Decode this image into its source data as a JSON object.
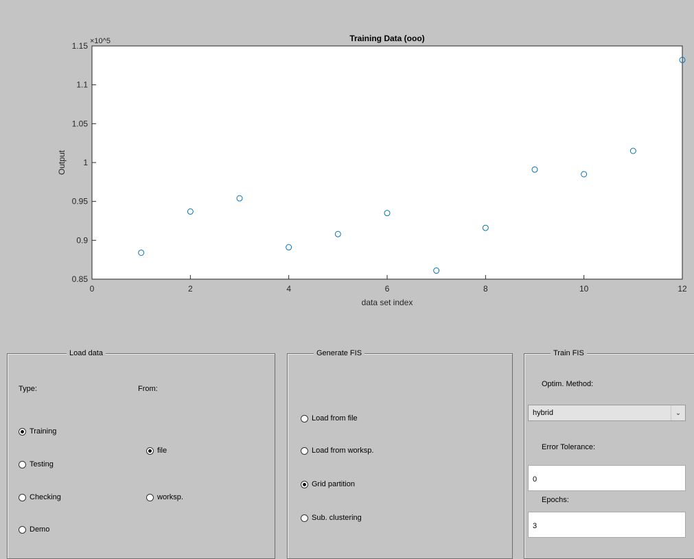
{
  "chart_data": {
    "type": "scatter",
    "title": "Training Data (ooo)",
    "xlabel": "data set index",
    "ylabel": "Output",
    "y_multiplier": "×10^5",
    "xlim": [
      0,
      12
    ],
    "ylim": [
      0.85,
      1.15
    ],
    "xticks": [
      "0",
      "2",
      "4",
      "6",
      "8",
      "10",
      "12"
    ],
    "yticks": [
      "0.85",
      "0.9",
      "0.95",
      "1",
      "1.05",
      "1.1",
      "1.15"
    ],
    "x": [
      1,
      2,
      3,
      4,
      5,
      6,
      7,
      8,
      9,
      10,
      11,
      12
    ],
    "y": [
      0.884,
      0.937,
      0.954,
      0.891,
      0.908,
      0.935,
      0.861,
      0.916,
      0.991,
      0.985,
      1.015,
      1.132
    ],
    "marker_color": "#0072bd",
    "grid": false
  },
  "load_data": {
    "title": "Load data",
    "type_label": "Type:",
    "from_label": "From:",
    "types": [
      {
        "label": "Training",
        "selected": true
      },
      {
        "label": "Testing",
        "selected": false
      },
      {
        "label": "Checking",
        "selected": false
      },
      {
        "label": "Demo",
        "selected": false
      }
    ],
    "sources": [
      {
        "label": "file",
        "selected": true
      },
      {
        "label": "worksp.",
        "selected": false
      }
    ]
  },
  "generate_fis": {
    "title": "Generate FIS",
    "options": [
      {
        "label": "Load from file",
        "selected": false
      },
      {
        "label": "Load from worksp.",
        "selected": false
      },
      {
        "label": "Grid partition",
        "selected": true
      },
      {
        "label": "Sub. clustering",
        "selected": false
      }
    ]
  },
  "train_fis": {
    "title": "Train FIS",
    "optim_label": "Optim. Method:",
    "optim_value": "hybrid",
    "error_label": "Error Tolerance:",
    "error_value": "0",
    "epochs_label": "Epochs:",
    "epochs_value": "3"
  }
}
